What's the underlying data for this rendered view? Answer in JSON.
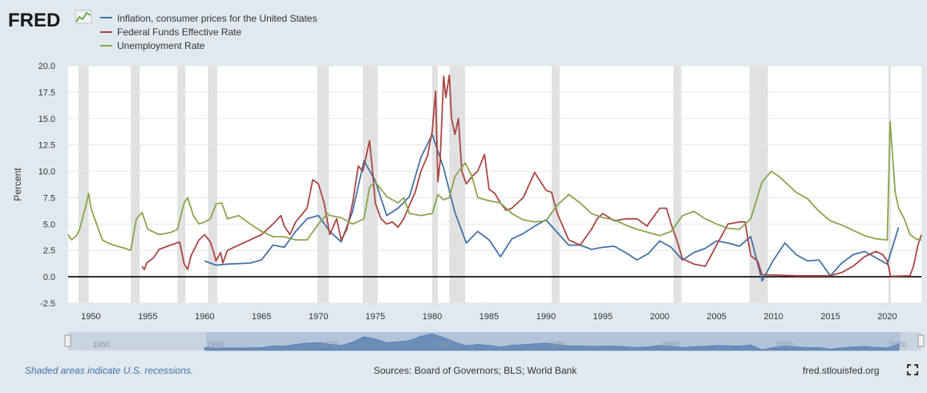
{
  "header": {
    "logo_text": "FRED",
    "logo_icon": "graph-icon"
  },
  "legend": [
    {
      "label": "Inflation, consumer prices for the United States",
      "color": "#4572a7"
    },
    {
      "label": "Federal Funds Effective Rate",
      "color": "#aa4643"
    },
    {
      "label": "Unemployment Rate",
      "color": "#89a54e"
    }
  ],
  "footer": {
    "recession_note": "Shaded areas indicate U.S. recessions.",
    "sources": "Sources: Board of Governors; BLS; World Bank",
    "site": "fred.stlouisfed.org"
  },
  "navigator": {
    "tick_labels": [
      "1950",
      "1960",
      "1970",
      "1980",
      "1990",
      "2000",
      "2010",
      "2020"
    ]
  },
  "chart_data": {
    "type": "line",
    "title": "",
    "xlabel": "",
    "ylabel": "Percent",
    "xlim": [
      1948,
      2023
    ],
    "ylim": [
      -2.5,
      20
    ],
    "x_ticks": [
      1950,
      1955,
      1960,
      1965,
      1970,
      1975,
      1980,
      1985,
      1990,
      1995,
      2000,
      2005,
      2010,
      2015,
      2020
    ],
    "y_ticks": [
      "20.0",
      "17.5",
      "15.0",
      "12.5",
      "10.0",
      "7.5",
      "5.0",
      "2.5",
      "0.0",
      "-2.5"
    ],
    "recessions": [
      [
        1948.9,
        1949.8
      ],
      [
        1953.5,
        1954.3
      ],
      [
        1957.6,
        1958.3
      ],
      [
        1960.3,
        1961.1
      ],
      [
        1969.9,
        1970.9
      ],
      [
        1973.9,
        1975.2
      ],
      [
        1980.0,
        1980.5
      ],
      [
        1981.5,
        1982.9
      ],
      [
        1990.5,
        1991.2
      ],
      [
        2001.2,
        2001.9
      ],
      [
        2007.9,
        2009.5
      ],
      [
        2020.1,
        2020.3
      ]
    ],
    "series": [
      {
        "name": "Inflation, consumer prices for the United States",
        "points": [
          [
            1960,
            1.5
          ],
          [
            1961,
            1.1
          ],
          [
            1962,
            1.2
          ],
          [
            1964,
            1.3
          ],
          [
            1965,
            1.6
          ],
          [
            1966,
            3.0
          ],
          [
            1967,
            2.8
          ],
          [
            1968,
            4.3
          ],
          [
            1969,
            5.5
          ],
          [
            1970,
            5.8
          ],
          [
            1971,
            4.3
          ],
          [
            1972,
            3.3
          ],
          [
            1973,
            6.2
          ],
          [
            1974,
            11.0
          ],
          [
            1975,
            9.1
          ],
          [
            1976,
            5.8
          ],
          [
            1977,
            6.5
          ],
          [
            1978,
            7.6
          ],
          [
            1979,
            11.3
          ],
          [
            1980,
            13.5
          ],
          [
            1981,
            10.3
          ],
          [
            1982,
            6.1
          ],
          [
            1983,
            3.2
          ],
          [
            1984,
            4.3
          ],
          [
            1985,
            3.5
          ],
          [
            1986,
            1.9
          ],
          [
            1987,
            3.6
          ],
          [
            1988,
            4.1
          ],
          [
            1989,
            4.8
          ],
          [
            1990,
            5.4
          ],
          [
            1991,
            4.2
          ],
          [
            1992,
            3.0
          ],
          [
            1993,
            3.0
          ],
          [
            1994,
            2.6
          ],
          [
            1995,
            2.8
          ],
          [
            1996,
            2.9
          ],
          [
            1997,
            2.3
          ],
          [
            1998,
            1.6
          ],
          [
            1999,
            2.2
          ],
          [
            2000,
            3.4
          ],
          [
            2001,
            2.8
          ],
          [
            2002,
            1.6
          ],
          [
            2003,
            2.3
          ],
          [
            2004,
            2.7
          ],
          [
            2005,
            3.4
          ],
          [
            2006,
            3.2
          ],
          [
            2007,
            2.9
          ],
          [
            2008,
            3.8
          ],
          [
            2009,
            -0.4
          ],
          [
            2010,
            1.6
          ],
          [
            2011,
            3.2
          ],
          [
            2012,
            2.1
          ],
          [
            2013,
            1.5
          ],
          [
            2014,
            1.6
          ],
          [
            2015,
            0.1
          ],
          [
            2016,
            1.3
          ],
          [
            2017,
            2.1
          ],
          [
            2018,
            2.4
          ],
          [
            2019,
            1.8
          ],
          [
            2020,
            1.2
          ],
          [
            2021,
            4.7
          ]
        ]
      },
      {
        "name": "Federal Funds Effective Rate",
        "points": [
          [
            1954.5,
            1.0
          ],
          [
            1954.7,
            0.7
          ],
          [
            1954.9,
            1.3
          ],
          [
            1955.5,
            1.8
          ],
          [
            1956,
            2.6
          ],
          [
            1957,
            3.0
          ],
          [
            1957.8,
            3.3
          ],
          [
            1958.2,
            1.2
          ],
          [
            1958.5,
            0.7
          ],
          [
            1958.8,
            2.0
          ],
          [
            1959.5,
            3.5
          ],
          [
            1960,
            4.0
          ],
          [
            1960.5,
            3.3
          ],
          [
            1960.8,
            2.3
          ],
          [
            1961,
            1.5
          ],
          [
            1961.4,
            2.3
          ],
          [
            1961.6,
            1.3
          ],
          [
            1962,
            2.5
          ],
          [
            1963,
            3.0
          ],
          [
            1964,
            3.5
          ],
          [
            1965,
            4.0
          ],
          [
            1966,
            5.0
          ],
          [
            1966.7,
            5.8
          ],
          [
            1967,
            4.8
          ],
          [
            1967.5,
            4.0
          ],
          [
            1968,
            5.2
          ],
          [
            1969,
            6.5
          ],
          [
            1969.5,
            9.2
          ],
          [
            1970,
            8.8
          ],
          [
            1970.5,
            7.0
          ],
          [
            1971,
            4.0
          ],
          [
            1971.6,
            5.5
          ],
          [
            1972,
            3.5
          ],
          [
            1972.5,
            4.5
          ],
          [
            1973,
            7.0
          ],
          [
            1973.5,
            10.5
          ],
          [
            1973.9,
            10.0
          ],
          [
            1974.5,
            12.9
          ],
          [
            1974.8,
            9.5
          ],
          [
            1975,
            7.0
          ],
          [
            1975.5,
            5.5
          ],
          [
            1976,
            5.0
          ],
          [
            1976.5,
            5.2
          ],
          [
            1977,
            4.7
          ],
          [
            1977.5,
            5.5
          ],
          [
            1978,
            6.8
          ],
          [
            1978.5,
            8.0
          ],
          [
            1979,
            10.0
          ],
          [
            1979.6,
            11.5
          ],
          [
            1980,
            13.8
          ],
          [
            1980.3,
            17.6
          ],
          [
            1980.5,
            9.0
          ],
          [
            1980.7,
            11.0
          ],
          [
            1981,
            19.0
          ],
          [
            1981.2,
            17.0
          ],
          [
            1981.5,
            19.1
          ],
          [
            1981.7,
            15.0
          ],
          [
            1982,
            13.5
          ],
          [
            1982.3,
            15.0
          ],
          [
            1982.6,
            10.0
          ],
          [
            1983,
            8.8
          ],
          [
            1983.5,
            9.5
          ],
          [
            1984,
            10.0
          ],
          [
            1984.6,
            11.6
          ],
          [
            1985,
            8.3
          ],
          [
            1985.5,
            7.9
          ],
          [
            1986,
            7.0
          ],
          [
            1986.5,
            6.3
          ],
          [
            1987,
            6.5
          ],
          [
            1988,
            7.5
          ],
          [
            1989,
            9.9
          ],
          [
            1990,
            8.2
          ],
          [
            1990.5,
            8.0
          ],
          [
            1991,
            6.0
          ],
          [
            1992,
            3.5
          ],
          [
            1993,
            3.0
          ],
          [
            1994,
            4.5
          ],
          [
            1994.5,
            5.5
          ],
          [
            1995,
            6.0
          ],
          [
            1996,
            5.3
          ],
          [
            1997,
            5.5
          ],
          [
            1998,
            5.5
          ],
          [
            1998.9,
            4.8
          ],
          [
            1999,
            5.0
          ],
          [
            2000,
            6.5
          ],
          [
            2000.6,
            6.5
          ],
          [
            2001,
            5.0
          ],
          [
            2001.5,
            3.5
          ],
          [
            2002,
            1.7
          ],
          [
            2003,
            1.2
          ],
          [
            2004,
            1.0
          ],
          [
            2005,
            3.0
          ],
          [
            2006,
            5.0
          ],
          [
            2007,
            5.2
          ],
          [
            2007.5,
            5.2
          ],
          [
            2008,
            2.0
          ],
          [
            2008.6,
            1.5
          ],
          [
            2009,
            0.2
          ],
          [
            2012,
            0.1
          ],
          [
            2015,
            0.1
          ],
          [
            2016,
            0.4
          ],
          [
            2017,
            1.0
          ],
          [
            2018,
            1.9
          ],
          [
            2019,
            2.4
          ],
          [
            2019.6,
            2.1
          ],
          [
            2020,
            1.5
          ],
          [
            2020.3,
            0.05
          ],
          [
            2022,
            0.1
          ],
          [
            2022.3,
            1.0
          ],
          [
            2022.7,
            3.0
          ],
          [
            2023,
            4.0
          ]
        ]
      },
      {
        "name": "Unemployment Rate",
        "points": [
          [
            1948,
            4.0
          ],
          [
            1948.3,
            3.5
          ],
          [
            1948.8,
            4.0
          ],
          [
            1949,
            4.5
          ],
          [
            1949.5,
            6.5
          ],
          [
            1949.8,
            7.9
          ],
          [
            1950,
            6.5
          ],
          [
            1950.5,
            5.0
          ],
          [
            1951,
            3.5
          ],
          [
            1951.5,
            3.2
          ],
          [
            1952,
            3.0
          ],
          [
            1953,
            2.7
          ],
          [
            1953.5,
            2.5
          ],
          [
            1954,
            5.5
          ],
          [
            1954.5,
            6.1
          ],
          [
            1955,
            4.5
          ],
          [
            1956,
            4.0
          ],
          [
            1957,
            4.2
          ],
          [
            1957.6,
            4.5
          ],
          [
            1958.2,
            7.0
          ],
          [
            1958.5,
            7.5
          ],
          [
            1959,
            5.8
          ],
          [
            1959.5,
            5.0
          ],
          [
            1960,
            5.2
          ],
          [
            1960.5,
            5.5
          ],
          [
            1961,
            6.9
          ],
          [
            1961.5,
            7.0
          ],
          [
            1962,
            5.5
          ],
          [
            1963,
            5.8
          ],
          [
            1964,
            5.0
          ],
          [
            1965,
            4.3
          ],
          [
            1966,
            3.8
          ],
          [
            1967,
            3.8
          ],
          [
            1968,
            3.5
          ],
          [
            1969,
            3.5
          ],
          [
            1970,
            5.0
          ],
          [
            1970.8,
            6.0
          ],
          [
            1971,
            5.8
          ],
          [
            1972,
            5.6
          ],
          [
            1973,
            5.0
          ],
          [
            1974,
            5.5
          ],
          [
            1974.5,
            8.5
          ],
          [
            1975,
            9.0
          ],
          [
            1976,
            7.6
          ],
          [
            1977,
            7.0
          ],
          [
            1977.5,
            7.5
          ],
          [
            1978,
            6.0
          ],
          [
            1979,
            5.8
          ],
          [
            1980,
            6.0
          ],
          [
            1980.5,
            7.8
          ],
          [
            1981,
            7.3
          ],
          [
            1981.5,
            7.5
          ],
          [
            1982,
            9.5
          ],
          [
            1982.9,
            10.8
          ],
          [
            1983.5,
            9.5
          ],
          [
            1984,
            7.5
          ],
          [
            1985,
            7.2
          ],
          [
            1986,
            7.0
          ],
          [
            1987,
            6.0
          ],
          [
            1988,
            5.4
          ],
          [
            1989,
            5.2
          ],
          [
            1990,
            5.3
          ],
          [
            1991,
            6.8
          ],
          [
            1992,
            7.8
          ],
          [
            1993,
            7.0
          ],
          [
            1994,
            6.0
          ],
          [
            1995,
            5.6
          ],
          [
            1996,
            5.4
          ],
          [
            1997,
            4.9
          ],
          [
            1998,
            4.5
          ],
          [
            1999,
            4.2
          ],
          [
            2000,
            3.9
          ],
          [
            2001,
            4.3
          ],
          [
            2002,
            5.8
          ],
          [
            2003,
            6.2
          ],
          [
            2004,
            5.5
          ],
          [
            2005,
            5.0
          ],
          [
            2006,
            4.6
          ],
          [
            2007,
            4.5
          ],
          [
            2008,
            5.5
          ],
          [
            2009,
            9.0
          ],
          [
            2009.8,
            10.0
          ],
          [
            2010.5,
            9.5
          ],
          [
            2011,
            9.0
          ],
          [
            2012,
            8.0
          ],
          [
            2013,
            7.4
          ],
          [
            2014,
            6.2
          ],
          [
            2015,
            5.3
          ],
          [
            2016,
            4.9
          ],
          [
            2017,
            4.4
          ],
          [
            2018,
            3.9
          ],
          [
            2019,
            3.6
          ],
          [
            2020,
            3.5
          ],
          [
            2020.25,
            14.7
          ],
          [
            2020.5,
            11.0
          ],
          [
            2020.7,
            8.0
          ],
          [
            2021,
            6.5
          ],
          [
            2021.5,
            5.5
          ],
          [
            2022,
            4.0
          ],
          [
            2022.5,
            3.6
          ],
          [
            2023,
            3.5
          ]
        ]
      }
    ]
  }
}
